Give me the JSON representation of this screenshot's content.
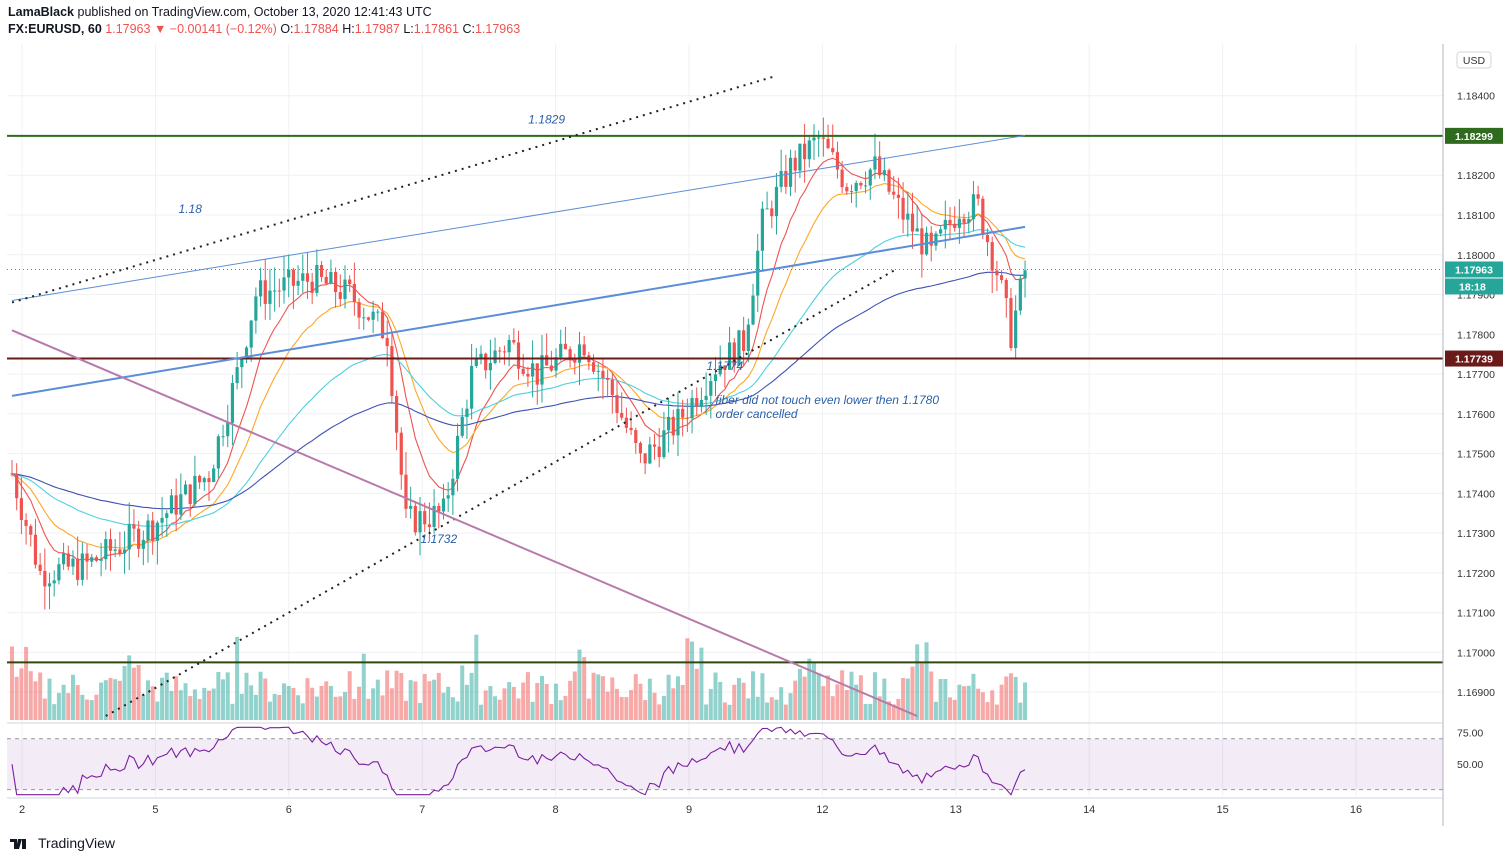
{
  "header": {
    "publisher": "LamaBlack",
    "published_text": "published on TradingView.com, October 13, 2020 12:41:43 UTC",
    "symbol": "FX:EURUSD, 60",
    "last": "1.17963",
    "change": "−0.00141 (−0.12%)",
    "o_label": "O:",
    "o": "1.17884",
    "h_label": "H:",
    "h": "1.17987",
    "l_label": "L:",
    "l": "1.17861",
    "c_label": "C:",
    "c": "1.17963"
  },
  "footer": {
    "brand": "TradingView"
  },
  "chart_data": {
    "type": "candlestick",
    "symbol": "EURUSD",
    "timeframe": "60",
    "currency": "USD",
    "x_labels": [
      "2",
      "5",
      "6",
      "7",
      "8",
      "9",
      "12",
      "13",
      "14",
      "15",
      "16"
    ],
    "y_range": [
      1.1683,
      1.1853
    ],
    "y_ticks": [
      "1.18400",
      "1.18200",
      "1.18100",
      "1.18000",
      "1.17900",
      "1.17800",
      "1.17700",
      "1.17600",
      "1.17500",
      "1.17400",
      "1.17300",
      "1.17200",
      "1.17100",
      "1.17000",
      "1.16900"
    ],
    "price_tags": [
      {
        "value": 1.18299,
        "label": "1.18299",
        "color": "#2e6b1e"
      },
      {
        "value": 1.17963,
        "label": "1.17963",
        "color": "#26a69a"
      },
      {
        "value": 1.17739,
        "label": "1.17739",
        "color": "#6b1a1a"
      }
    ],
    "countdown": "18:18",
    "annotations": [
      {
        "text": "1.1829",
        "x_index": 114,
        "price": 1.1833
      },
      {
        "text": "1.18",
        "x_index": 38,
        "price": 1.18105
      },
      {
        "text": "1.1732",
        "x_index": 91,
        "price": 1.17275
      },
      {
        "text": "1.1774",
        "x_index": 152,
        "price": 1.1771
      },
      {
        "text": "fiber did not touch even lower then 1.1780",
        "x_index": 150,
        "price": 1.17625
      },
      {
        "text": "order cancelled",
        "x_index": 150,
        "price": 1.1759
      }
    ],
    "horizontal_lines": [
      {
        "price": 1.18299,
        "color": "#2e6b1e"
      },
      {
        "price": 1.17739,
        "color": "#6b1a1a"
      },
      {
        "price": 1.16975,
        "color": "#2e4a12"
      }
    ],
    "trendlines": [
      {
        "p1": [
          0,
          1.17885
        ],
        "p2": [
          216,
          1.183
        ],
        "color": "#5b8ed8",
        "style": "solid",
        "width": 1
      },
      {
        "p1": [
          0,
          1.17645
        ],
        "p2": [
          216,
          1.1807
        ],
        "color": "#5b8ed8",
        "style": "solid",
        "width": 2
      },
      {
        "p1": [
          0,
          1.1788
        ],
        "p2": [
          163,
          1.1845
        ],
        "color": "#222222",
        "style": "dotted",
        "width": 2
      },
      {
        "p1": [
          20,
          1.1684
        ],
        "p2": [
          188,
          1.1796
        ],
        "color": "#222222",
        "style": "dotted",
        "width": 2
      },
      {
        "p1": [
          0,
          1.1781
        ],
        "p2": [
          193,
          1.1684
        ],
        "color": "#b87aa8",
        "style": "solid",
        "width": 2
      }
    ],
    "rsi": {
      "levels": [
        70,
        30
      ],
      "ticks": [
        "75.00",
        "50.00"
      ],
      "y_range": [
        25,
        80
      ]
    },
    "seed": 7
  }
}
